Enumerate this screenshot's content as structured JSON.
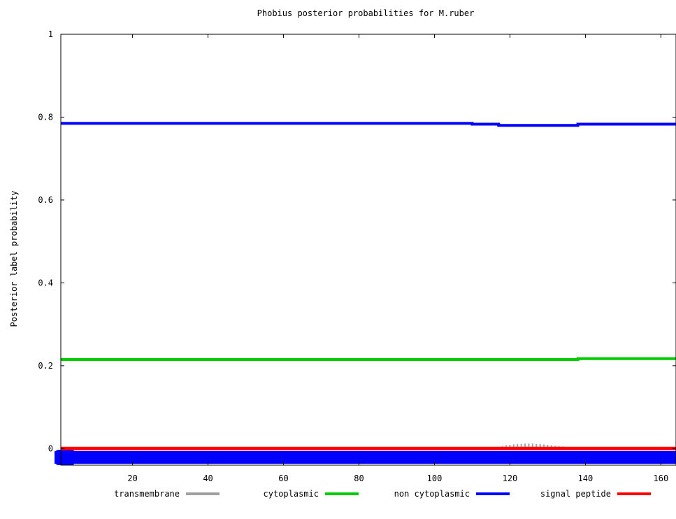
{
  "chart_data": {
    "type": "line",
    "title": "Phobius posterior probabilities for M.ruber",
    "xlabel": "",
    "ylabel": "Posterior label probability",
    "xlim": [
      1,
      164
    ],
    "ylim": [
      -0.04,
      1
    ],
    "x_ticks": [
      20,
      40,
      60,
      80,
      100,
      120,
      140,
      160
    ],
    "x_tick_labels": [
      "20",
      "40",
      "60",
      "80",
      "100",
      "120",
      "140",
      "160"
    ],
    "y_ticks": [
      0,
      0.2,
      0.4,
      0.6,
      0.8,
      1
    ],
    "y_tick_labels": [
      "0",
      "0.2",
      "0.4",
      "0.6",
      "0.8",
      "1"
    ],
    "grid": false,
    "legend_position": "bottom",
    "series": [
      {
        "name": "transmembrane",
        "color": "#a0a0a0",
        "style": "impulses",
        "x": [
          115,
          116,
          117,
          118,
          119,
          120,
          121,
          122,
          123,
          124,
          125,
          126,
          127,
          128,
          129,
          130,
          131,
          132,
          133,
          134,
          135,
          136,
          137,
          138
        ],
        "y": [
          0.001,
          0.002,
          0.004,
          0.006,
          0.008,
          0.009,
          0.01,
          0.011,
          0.011,
          0.012,
          0.012,
          0.012,
          0.011,
          0.011,
          0.01,
          0.009,
          0.008,
          0.007,
          0.006,
          0.005,
          0.004,
          0.003,
          0.002,
          0.001
        ]
      },
      {
        "name": "cytoplasmic",
        "color": "#00cc00",
        "style": "steps",
        "x": [
          1,
          110,
          117,
          138,
          164
        ],
        "y": [
          0.215,
          0.215,
          0.215,
          0.217,
          0.217
        ]
      },
      {
        "name": "non cytoplasmic",
        "color": "#0000ff",
        "style": "steps",
        "x": [
          1,
          110,
          117,
          138,
          164
        ],
        "y": [
          0.785,
          0.783,
          0.78,
          0.783,
          0.783
        ]
      },
      {
        "name": "signal peptide",
        "color": "#ff0000",
        "style": "steps",
        "x": [
          1,
          164
        ],
        "y": [
          0,
          0
        ]
      }
    ]
  }
}
